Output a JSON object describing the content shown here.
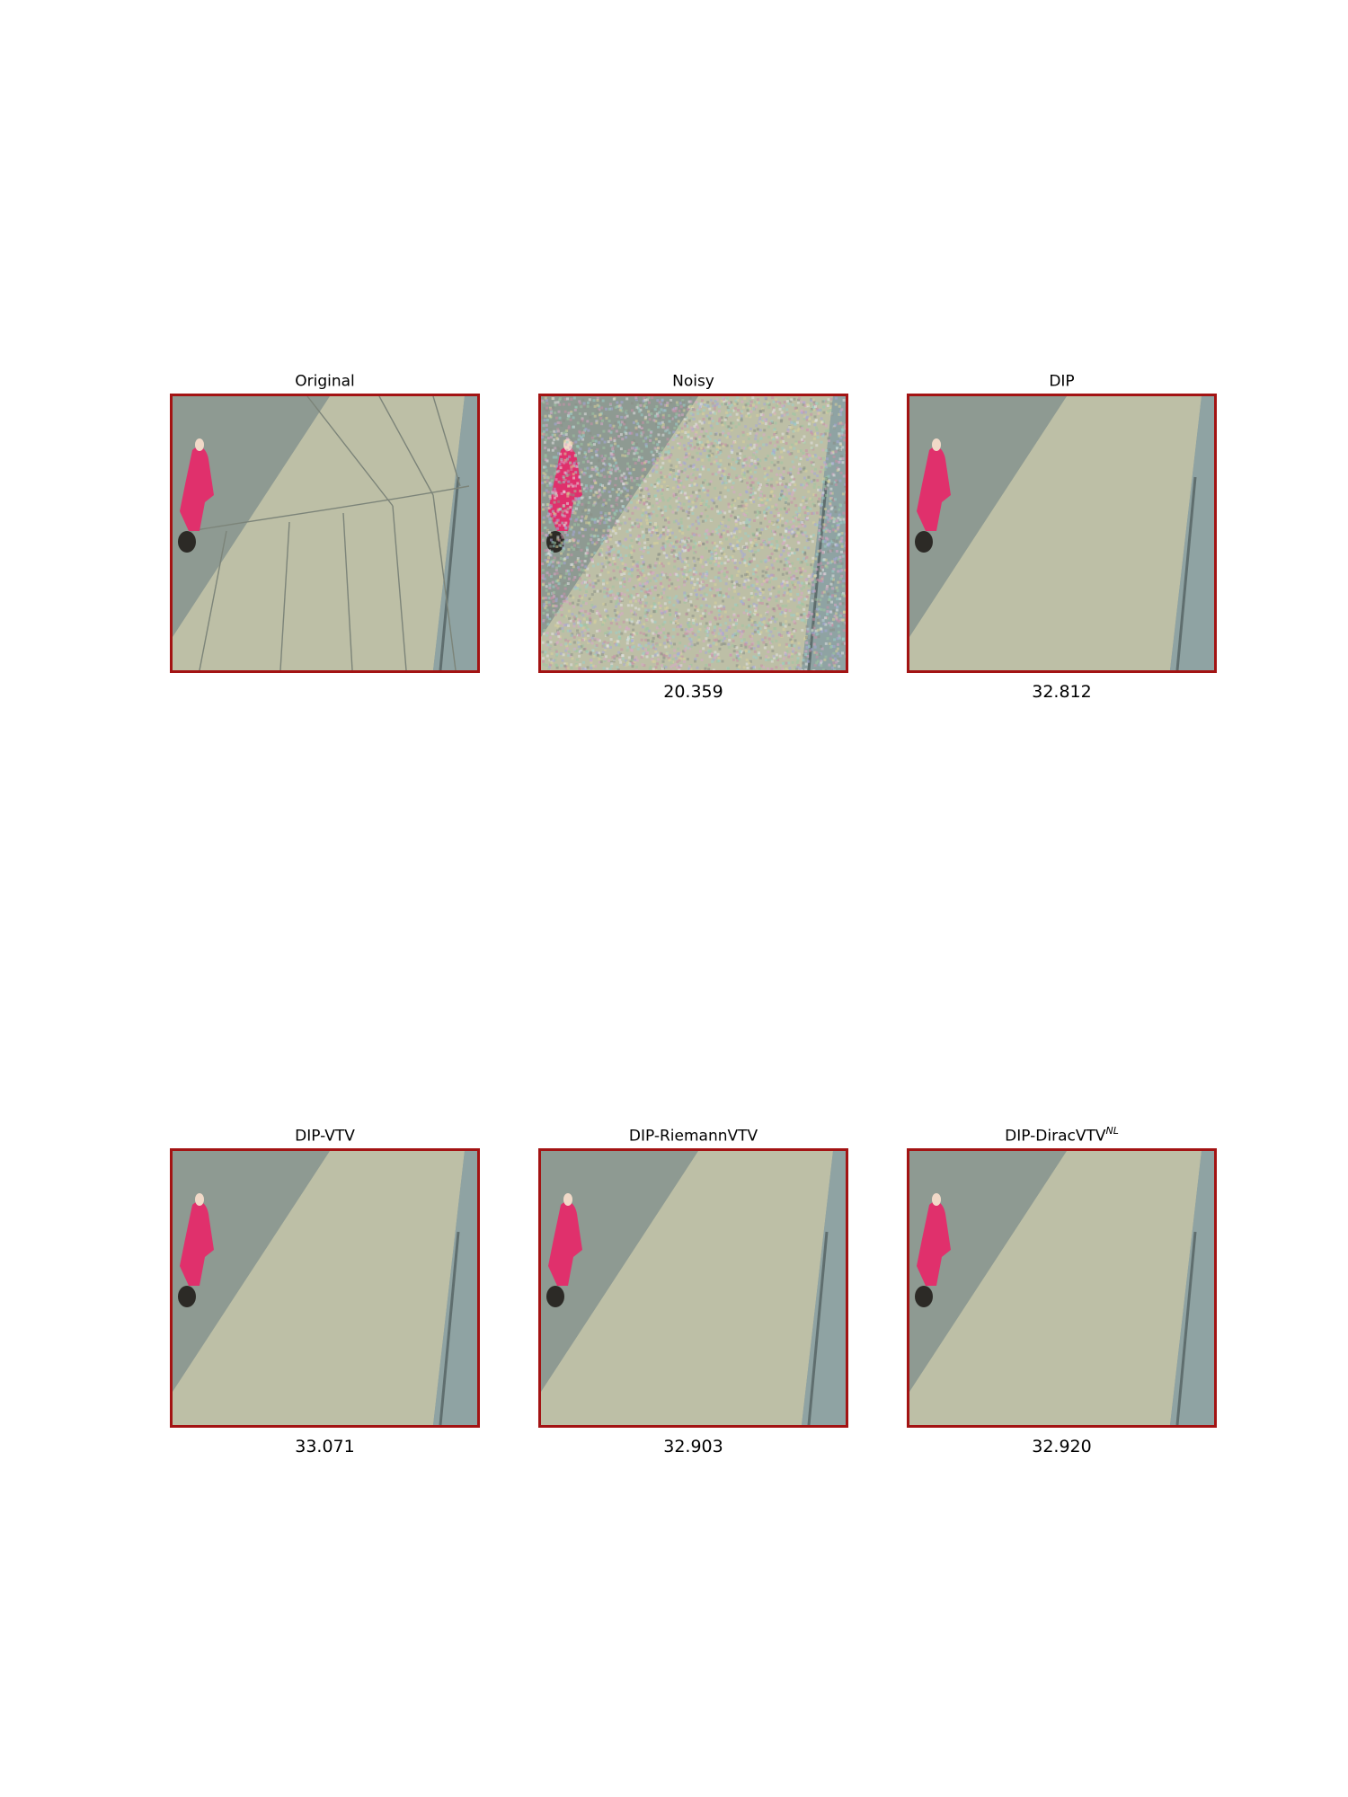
{
  "figure": {
    "panels": [
      {
        "id": "original",
        "title": "Original",
        "title_sup": "",
        "psnr": ""
      },
      {
        "id": "noisy",
        "title": "Noisy",
        "title_sup": "",
        "psnr": "20.359"
      },
      {
        "id": "dip",
        "title": "DIP",
        "title_sup": "",
        "psnr": "32.812"
      },
      {
        "id": "dip-vtv",
        "title": "DIP-VTV",
        "title_sup": "",
        "psnr": "33.071"
      },
      {
        "id": "dip-riemannvtv",
        "title": "DIP-RiemannVTV",
        "title_sup": "",
        "psnr": "32.903"
      },
      {
        "id": "dip-diracvtv-nl",
        "title": "DIP-DiracVTV",
        "title_sup": "NL",
        "psnr": "32.920"
      }
    ],
    "colors": {
      "frame": "#a31313",
      "shadow": "#8e9a92",
      "lit_surface": "#bdbfa6",
      "glass_edge": "#8fa3a3",
      "figure_pink": "#e0306c"
    }
  }
}
